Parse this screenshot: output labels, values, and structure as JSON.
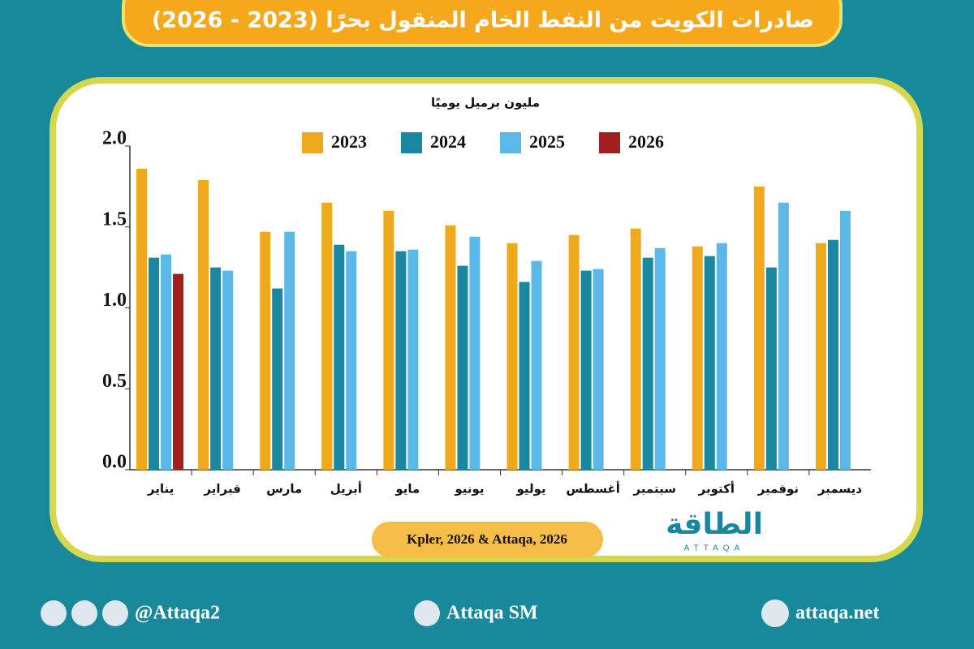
{
  "chart_data": {
    "type": "bar",
    "title": "صادرات الكويت من النفط الخام المنقول بحرًا (2023 - 2026)",
    "y_label": "مليون برميل يوميًا",
    "source": "Kpler, 2026 & Attaqa, 2026",
    "categories": [
      "يناير",
      "فبراير",
      "مارس",
      "أبريل",
      "مايو",
      "يونيو",
      "يوليو",
      "أغسطس",
      "سبتمبر",
      "أكتوبر",
      "نوفمبر",
      "ديسمبر"
    ],
    "series": [
      {
        "name": "2023",
        "color": "#eeaa1c",
        "values": [
          1.86,
          1.79,
          1.47,
          1.65,
          1.6,
          1.51,
          1.4,
          1.45,
          1.49,
          1.38,
          1.75,
          1.4
        ]
      },
      {
        "name": "2024",
        "color": "#1b86a0",
        "values": [
          1.31,
          1.25,
          1.12,
          1.39,
          1.35,
          1.26,
          1.16,
          1.23,
          1.31,
          1.32,
          1.25,
          1.42
        ]
      },
      {
        "name": "2025",
        "color": "#5bb9ea",
        "values": [
          1.33,
          1.23,
          1.47,
          1.35,
          1.36,
          1.44,
          1.29,
          1.24,
          1.37,
          1.4,
          1.65,
          1.6
        ]
      },
      {
        "name": "2026",
        "color": "#a11f1f",
        "values": [
          1.21,
          null,
          null,
          null,
          null,
          null,
          null,
          null,
          null,
          null,
          null,
          null
        ]
      }
    ],
    "ylim": [
      0,
      2
    ],
    "yticks": [
      {
        "value": 0,
        "label": "0.0"
      },
      0.5,
      {
        "value": 1,
        "label": "1.0"
      },
      1.5,
      {
        "value": 2,
        "label": "2.0"
      }
    ],
    "grid": false
  },
  "logo": {
    "arabic": "الطاقة",
    "latin": "ATTAQA"
  },
  "footer": {
    "social": "@Attaqa2",
    "youtube": "Attaqa SM",
    "website": "attaqa.net"
  }
}
